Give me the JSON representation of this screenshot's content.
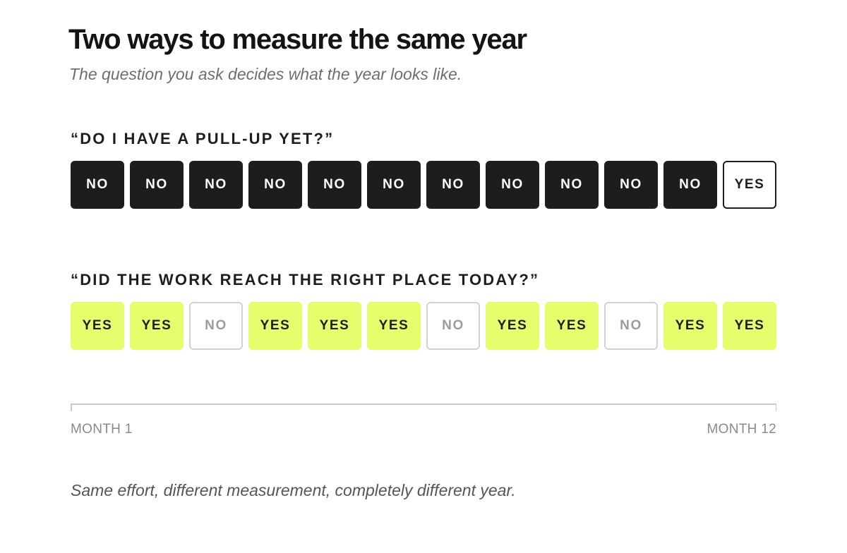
{
  "title": "Two ways to measure the same year",
  "subtitle": "The question you ask decides what the year looks like.",
  "rows": [
    {
      "question": "“DO I HAVE A PULL-UP YET?”",
      "cells": [
        {
          "label": "NO",
          "style": "no-dark"
        },
        {
          "label": "NO",
          "style": "no-dark"
        },
        {
          "label": "NO",
          "style": "no-dark"
        },
        {
          "label": "NO",
          "style": "no-dark"
        },
        {
          "label": "NO",
          "style": "no-dark"
        },
        {
          "label": "NO",
          "style": "no-dark"
        },
        {
          "label": "NO",
          "style": "no-dark"
        },
        {
          "label": "NO",
          "style": "no-dark"
        },
        {
          "label": "NO",
          "style": "no-dark"
        },
        {
          "label": "NO",
          "style": "no-dark"
        },
        {
          "label": "NO",
          "style": "no-dark"
        },
        {
          "label": "YES",
          "style": "yes-outline"
        }
      ]
    },
    {
      "question": "“DID THE WORK REACH THE RIGHT PLACE TODAY?”",
      "cells": [
        {
          "label": "YES",
          "style": "yes-green"
        },
        {
          "label": "YES",
          "style": "yes-green"
        },
        {
          "label": "NO",
          "style": "no-outline"
        },
        {
          "label": "YES",
          "style": "yes-green"
        },
        {
          "label": "YES",
          "style": "yes-green"
        },
        {
          "label": "YES",
          "style": "yes-green"
        },
        {
          "label": "NO",
          "style": "no-outline"
        },
        {
          "label": "YES",
          "style": "yes-green"
        },
        {
          "label": "YES",
          "style": "yes-green"
        },
        {
          "label": "NO",
          "style": "no-outline"
        },
        {
          "label": "YES",
          "style": "yes-green"
        },
        {
          "label": "YES",
          "style": "yes-green"
        }
      ]
    }
  ],
  "timeline": {
    "start_label": "MONTH 1",
    "end_label": "MONTH 12"
  },
  "caption": "Same effort, different measurement, completely different year.",
  "colors": {
    "dark": "#1d1d1d",
    "accent_green": "#e6fd6c",
    "muted_border": "#d2d2d2",
    "muted_text": "#9c9c9c"
  }
}
